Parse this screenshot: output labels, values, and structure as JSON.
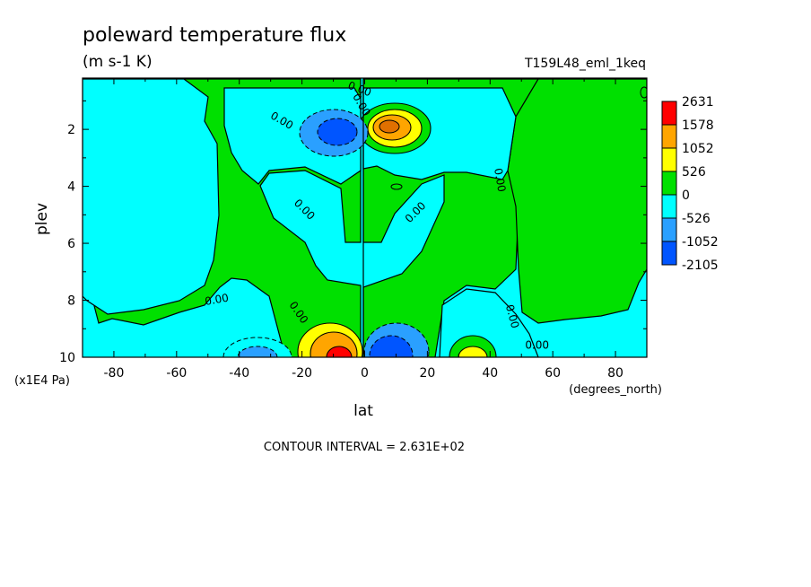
{
  "chart_data": {
    "type": "heatmap",
    "title": "poleward temperature flux",
    "units": "(m s-1 K)",
    "run_id": "T159L48_eml_1keq",
    "xlabel": "lat",
    "x_units": "(degrees_north)",
    "ylabel": "plev",
    "y_units": "(x1E4 Pa)",
    "xlim": [
      -90,
      90
    ],
    "ylim": [
      10,
      0.2
    ],
    "x_ticks": [
      -80,
      -60,
      -40,
      -20,
      0,
      20,
      40,
      60,
      80
    ],
    "x_tick_labels": [
      "-80",
      "-60",
      "-40",
      "-20",
      "0",
      "20",
      "40",
      "60",
      "80"
    ],
    "y_ticks": [
      2,
      4,
      6,
      8,
      10
    ],
    "y_tick_labels": [
      "2",
      "4",
      "6",
      "8",
      "10"
    ],
    "contour_interval_text": "CONTOUR INTERVAL = 2.631E+02",
    "contour_interval": 263.1,
    "colorbar": {
      "labels": [
        "2631",
        "1578",
        "1052",
        "526",
        "0",
        "-526",
        "-1052",
        "-2105"
      ],
      "colors": [
        "#ff0000",
        "#ffa500",
        "#ffff00",
        "#00e000",
        "#00ffff",
        "#2aa0ff",
        "#0055ff"
      ]
    },
    "contour_labels": [
      "0.00",
      "0.00",
      "0.00",
      "0.00",
      "0.00",
      "0.00",
      "0.00",
      "0.00",
      "0.00",
      "0.00"
    ],
    "features": [
      {
        "lat": -8,
        "plev": 2.0,
        "value": -1300
      },
      {
        "lat": 9,
        "plev": 1.9,
        "value": 1400
      },
      {
        "lat": -8,
        "plev": 9.6,
        "value": 1700
      },
      {
        "lat": 8,
        "plev": 9.6,
        "value": -1500
      },
      {
        "lat": -33,
        "plev": 9.7,
        "value": -900
      },
      {
        "lat": 33,
        "plev": 9.8,
        "value": 800
      }
    ]
  }
}
